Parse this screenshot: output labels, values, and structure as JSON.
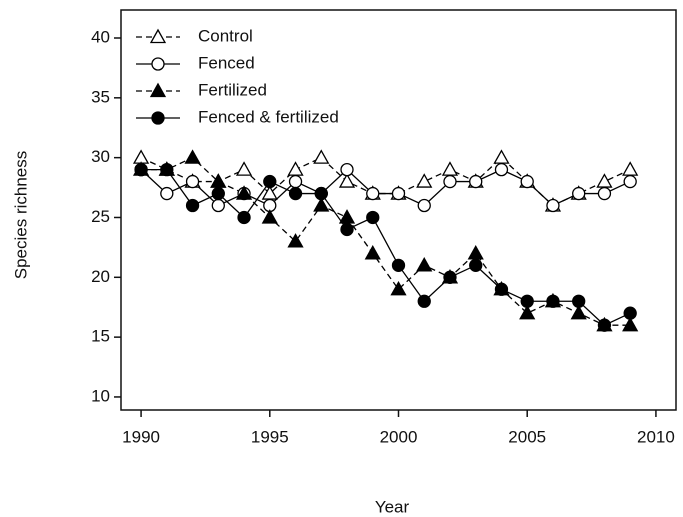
{
  "chart_data": {
    "type": "line",
    "x_label": "Year",
    "y_label": "Species richness",
    "x": [
      1990,
      1991,
      1992,
      1993,
      1994,
      1995,
      1996,
      1997,
      1998,
      1999,
      2000,
      2001,
      2002,
      2003,
      2004,
      2005,
      2006,
      2007,
      2008,
      2009
    ],
    "series": [
      {
        "name": "Control",
        "color": "#000000",
        "marker": "triangle",
        "filled": false,
        "dashed": true,
        "values": [
          30,
          29,
          28,
          28,
          29,
          27,
          29,
          30,
          28,
          27,
          27,
          28,
          29,
          28,
          30,
          28,
          26,
          27,
          28,
          29
        ]
      },
      {
        "name": "Fenced",
        "color": "#000000",
        "marker": "circle",
        "filled": false,
        "dashed": false,
        "values": [
          29,
          27,
          28,
          26,
          27,
          26,
          28,
          27,
          29,
          27,
          27,
          26,
          28,
          28,
          29,
          28,
          26,
          27,
          27,
          28
        ]
      },
      {
        "name": "Fertilized",
        "color": "#000000",
        "marker": "triangle",
        "filled": true,
        "dashed": true,
        "values": [
          29,
          29,
          30,
          28,
          27,
          25,
          23,
          26,
          25,
          22,
          19,
          21,
          20,
          22,
          19,
          17,
          18,
          17,
          16,
          16
        ]
      },
      {
        "name": "Fenced & fertilized",
        "color": "#000000",
        "marker": "circle",
        "filled": true,
        "dashed": false,
        "values": [
          29,
          29,
          26,
          27,
          25,
          28,
          27,
          27,
          24,
          25,
          21,
          18,
          20,
          21,
          19,
          18,
          18,
          18,
          16,
          17
        ]
      }
    ],
    "xlim": [
      1989.22,
      2010.78
    ],
    "xticks": [
      1990,
      1995,
      2000,
      2005,
      2010
    ],
    "ylim": [
      8.91,
      42.34
    ],
    "yticks": [
      10,
      15,
      20,
      25,
      30,
      35,
      40
    ],
    "legend": "top-left"
  }
}
